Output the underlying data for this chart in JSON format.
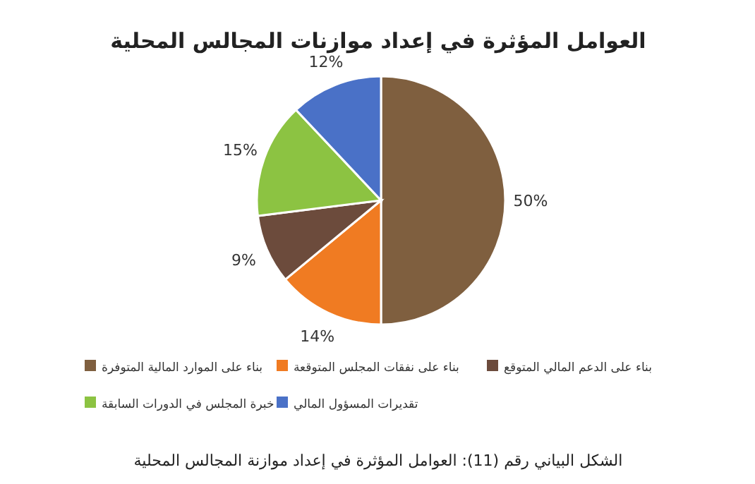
{
  "chart_data": {
    "type": "pie",
    "title": "العوامل المؤثرة في إعداد موازنات المجالس المحلية",
    "categories": [
      "بناء على الموارد المالية المتوفرة",
      "بناء على نفقات المجلس المتوقعة",
      "بناء على الدعم المالي المتوقع",
      "خبرة المجلس في الدورات السابقة",
      "تقديرات المسؤول المالي"
    ],
    "values": [
      50,
      14,
      9,
      15,
      12
    ],
    "value_labels": [
      "50%",
      "14%",
      "9%",
      "15%",
      "12%"
    ],
    "colors": [
      "#7f5f3f",
      "#f07b22",
      "#6c4b3c",
      "#8cc342",
      "#4a71c7"
    ],
    "legend": "bottom",
    "annotations": [
      "الشكل البياني رقم (11): العوامل المؤثرة في إعداد موازنة المجالس المحلية"
    ]
  }
}
